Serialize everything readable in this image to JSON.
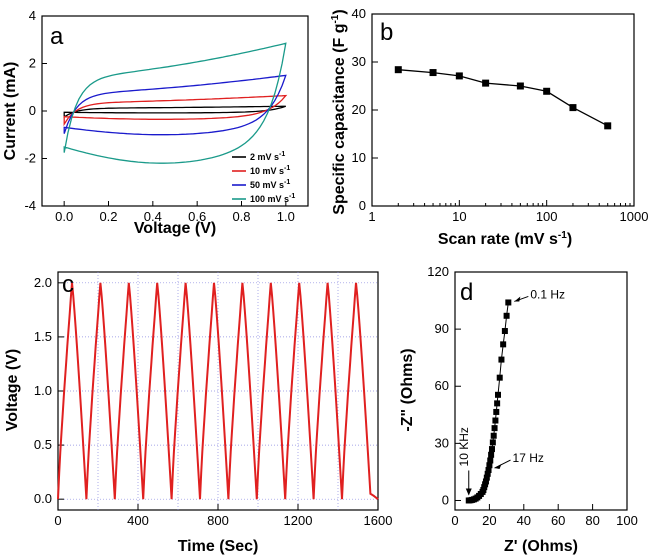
{
  "chart_data": [
    {
      "panel": "a",
      "type": "line",
      "xlabel": "Voltage (V)",
      "ylabel": "Current (mA)",
      "xlim": [
        -0.1,
        1.1
      ],
      "ylim": [
        -4,
        4
      ],
      "xticks": [
        "0.0",
        "0.2",
        "0.4",
        "0.6",
        "0.8",
        "1.0"
      ],
      "yticks": [
        "-4",
        "-2",
        "0",
        "2",
        "4"
      ],
      "legend_position": "bottom-right",
      "series": [
        {
          "name": "2 mV s",
          "name_sup": "-1",
          "color": "#000000",
          "upper": 0.12,
          "upper_end": 0.2,
          "lower": -0.08,
          "lower_start": -0.25
        },
        {
          "name": "10 mV s",
          "name_sup": "-1",
          "color": "#e02020",
          "upper": 0.35,
          "upper_end": 0.65,
          "lower": -0.35,
          "lower_start": -0.55
        },
        {
          "name": "50 mV s",
          "name_sup": "-1",
          "color": "#1a1acc",
          "upper": 0.75,
          "upper_end": 1.5,
          "lower": -1.0,
          "lower_start": -0.95
        },
        {
          "name": "100 mV s",
          "name_sup": "-1",
          "color": "#1a9a8a",
          "upper": 1.45,
          "upper_end": 2.85,
          "lower": -2.2,
          "lower_start": -1.75
        }
      ]
    },
    {
      "panel": "b",
      "type": "line",
      "xlabel": "Scan rate (mV s",
      "xlabel_sup": "-1",
      "xlabel_end": ")",
      "ylabel": "Specific capacitance (F g",
      "ylabel_sup": "-1",
      "ylabel_end": ")",
      "xscale": "log",
      "xlim": [
        1,
        1000
      ],
      "ylim": [
        0,
        40
      ],
      "xticks": [
        "1",
        "10",
        "100",
        "1000"
      ],
      "yticks": [
        "0",
        "10",
        "20",
        "30",
        "40"
      ],
      "x": [
        2,
        5,
        10,
        20,
        50,
        100,
        200,
        500
      ],
      "y": [
        28.4,
        27.8,
        27.1,
        25.6,
        25.0,
        23.9,
        20.5,
        16.7
      ]
    },
    {
      "panel": "c",
      "type": "line",
      "xlabel": "Time (Sec)",
      "ylabel": "Voltage (V)",
      "xlim": [
        0,
        1600
      ],
      "ylim": [
        -0.1,
        2.1
      ],
      "xticks": [
        "0",
        "400",
        "800",
        "1200",
        "1600"
      ],
      "yticks": [
        "0.0",
        "0.5",
        "1.0",
        "1.5",
        "2.0"
      ],
      "grid": true,
      "color": "#e02020",
      "x": [
        0,
        70,
        142,
        212,
        284,
        354,
        426,
        496,
        568,
        638,
        710,
        780,
        852,
        922,
        994,
        1064,
        1136,
        1206,
        1278,
        1348,
        1420,
        1490,
        1562,
        1600
      ],
      "y": [
        0,
        2,
        0,
        2,
        0,
        2,
        0,
        2,
        0,
        2,
        0,
        2,
        0,
        2,
        0,
        2,
        0,
        2,
        0,
        2,
        0,
        2,
        0.05,
        0
      ]
    },
    {
      "panel": "d",
      "type": "scatter",
      "xlabel": "Z' (Ohms)",
      "ylabel": "-Z\" (Ohms)",
      "xlim": [
        0,
        100
      ],
      "ylim": [
        -5,
        120
      ],
      "xticks": [
        "0",
        "20",
        "40",
        "60",
        "80",
        "100"
      ],
      "yticks": [
        "0",
        "30",
        "60",
        "90",
        "120"
      ],
      "x": [
        8,
        9,
        10,
        11,
        12,
        13,
        14,
        15,
        16,
        16.5,
        17,
        17.5,
        18,
        18.5,
        19,
        19.5,
        20,
        20.5,
        21,
        21.5,
        22,
        22.5,
        23,
        23.5,
        24,
        24.5,
        25,
        26,
        27,
        28,
        29,
        30,
        31
      ],
      "y": [
        0,
        0.1,
        0.3,
        0.6,
        1.0,
        1.6,
        2.4,
        3.4,
        4.5,
        5.5,
        7,
        8.5,
        10,
        12,
        14,
        16,
        18.5,
        21,
        24,
        27,
        30.5,
        34,
        38,
        42,
        46.5,
        51,
        55.5,
        64.5,
        74,
        82,
        89,
        97,
        104
      ],
      "annotations": [
        {
          "text": "0.1 Hz"
        },
        {
          "text": "17 Hz"
        },
        {
          "text": "10 KHz"
        }
      ]
    }
  ],
  "panel_labels": [
    "a",
    "b",
    "c",
    "d"
  ]
}
